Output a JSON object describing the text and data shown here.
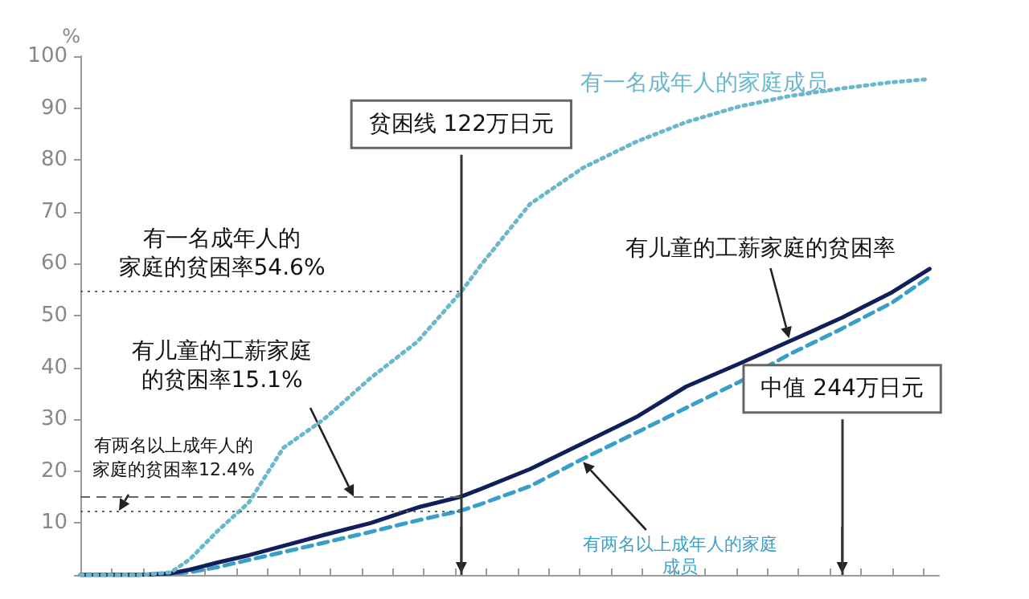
{
  "chart_data": {
    "type": "line",
    "ylabel": "%",
    "x": [
      0,
      19,
      29,
      35,
      44,
      54,
      65,
      78,
      93,
      108,
      122,
      128,
      144,
      161,
      178,
      194,
      211,
      227,
      244,
      260,
      272
    ],
    "series": [
      {
        "name": "有一名成年人的家庭成员",
        "color": "#6bb8cc",
        "line_style": "dotted",
        "values": [
          0,
          0,
          0.5,
          3,
          8.5,
          14,
          24.5,
          30,
          38,
          45,
          54.6,
          59.5,
          71.5,
          78.5,
          83.5,
          87.3,
          90.3,
          92.3,
          93.8,
          95,
          95.6
        ]
      },
      {
        "name": "有儿童的工薪家庭的贫困率",
        "color": "#101f5a",
        "line_style": "solid",
        "values": [
          0,
          0,
          0.3,
          1,
          2.4,
          3.8,
          5.6,
          7.7,
          10,
          13,
          15.1,
          16.5,
          20.4,
          25.4,
          30.4,
          36.3,
          40.7,
          45,
          49.6,
          54.5,
          59
        ]
      },
      {
        "name": "有两名以上成年人的家庭成员",
        "color": "#3a9fc8",
        "line_style": "dashed",
        "values": [
          0,
          0,
          0.2,
          0.5,
          1.5,
          2.9,
          4.4,
          6.2,
          8.3,
          10.5,
          12.4,
          13.6,
          17.1,
          22.4,
          27.4,
          32.2,
          37.2,
          42.5,
          47.5,
          52.5,
          57.5
        ]
      }
    ],
    "xlim": [
      0,
      275
    ],
    "xticks": [
      {
        "value": 0,
        "label": null
      },
      {
        "value": 10,
        "label": null
      },
      {
        "value": 20,
        "label": null
      },
      {
        "value": 30,
        "label": null
      },
      {
        "value": 40,
        "label": null
      },
      {
        "value": 50,
        "label": null
      },
      {
        "value": 60,
        "label": null
      },
      {
        "value": 70,
        "label": null
      },
      {
        "value": 80,
        "label": null
      },
      {
        "value": 90,
        "label": null
      },
      {
        "value": 100,
        "label": null
      },
      {
        "value": 110,
        "label": null
      },
      {
        "value": 120,
        "label": null
      },
      {
        "value": 130,
        "label": null
      },
      {
        "value": 140,
        "label": null
      },
      {
        "value": 150,
        "label": null
      },
      {
        "value": 160,
        "label": null
      },
      {
        "value": 170,
        "label": null
      },
      {
        "value": 180,
        "label": null
      },
      {
        "value": 190,
        "label": null
      },
      {
        "value": 200,
        "label": null
      },
      {
        "value": 210,
        "label": null
      },
      {
        "value": 220,
        "label": null
      },
      {
        "value": 230,
        "label": null
      },
      {
        "value": 240,
        "label": null
      },
      {
        "value": 250,
        "label": null
      },
      {
        "value": 260,
        "label": null
      },
      {
        "value": 270,
        "label": null
      }
    ],
    "ylim": [
      0,
      100
    ],
    "yticks": [
      {
        "value": 0,
        "label": null
      },
      10,
      20,
      30,
      40,
      50,
      60,
      70,
      80,
      90,
      100
    ],
    "tick_labels": "y",
    "grid": false,
    "legend": false,
    "marker": "none",
    "ref_lines": [
      {
        "axis": "x",
        "value": 122,
        "label": "贫困线 122万日元",
        "color": "#333333",
        "line_style": "solid"
      },
      {
        "axis": "x",
        "value": 244,
        "label": "中值 244万日元",
        "color": "#333333",
        "line_style": "solid"
      },
      {
        "axis": "y",
        "value": 54.6,
        "label": "有一名成年人的家庭的贫困率54.6%",
        "color": "#666666",
        "line_style": "dotted"
      },
      {
        "axis": "y",
        "value": 15.1,
        "label": "有儿童的工薪家庭的贫困率15.1%",
        "color": "#666666",
        "line_style": "dashed"
      },
      {
        "axis": "y",
        "value": 12.4,
        "label": "有两名以上成年人的家庭的贫困率12.4%",
        "color": "#666666",
        "line_style": "dotted"
      }
    ]
  }
}
